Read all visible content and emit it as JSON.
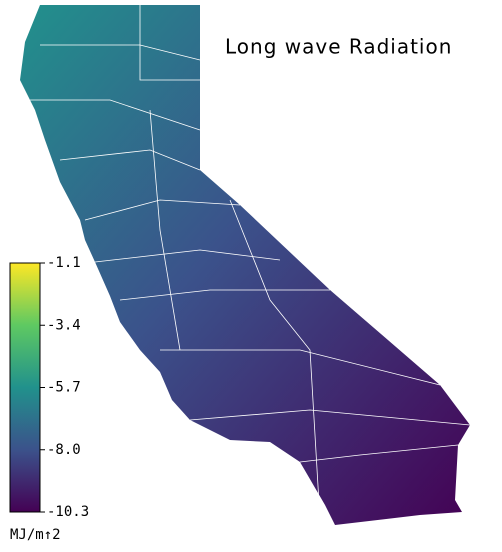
{
  "chart_data": {
    "type": "map",
    "title": "Long wave Radiation",
    "colorbar": {
      "label": "MJ/m↑2",
      "lim": [
        -10.3,
        -1.1
      ],
      "ticks": [
        -1.1,
        -3.4,
        -5.7,
        {
          "value": -8,
          "label": "-8.0"
        },
        -10.3
      ],
      "colors": [
        "#440154",
        "#3b528b",
        "#21918c",
        "#5ec962",
        "#fde725"
      ]
    }
  }
}
